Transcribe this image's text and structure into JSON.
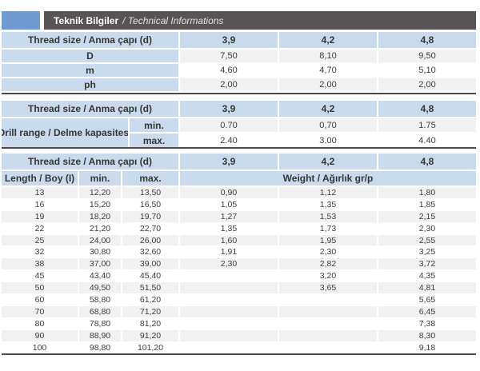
{
  "header": {
    "title_tr": "Teknik Bilgiler",
    "title_en": "/ Technical Informations"
  },
  "colors": {
    "accent_blue": "#6f9bd1",
    "bar_gray": "#585456",
    "header_blue": "#c8daec",
    "row_stripe_gray": "#f1f1f1",
    "border_dark": "#4a4a4a"
  },
  "table1": {
    "header": [
      "Thread size / Anma çapı (d)",
      "3,9",
      "4,2",
      "4,8"
    ],
    "rows": [
      [
        "D",
        "7,50",
        "8,10",
        "9,50"
      ],
      [
        "m",
        "4,60",
        "4,70",
        "5,10"
      ],
      [
        "ph",
        "2,00",
        "2,00",
        "2,00"
      ]
    ]
  },
  "table2": {
    "header": [
      "Thread size / Anma çapı (d)",
      "3,9",
      "4,2",
      "4,8"
    ],
    "row_label": "Drill range / Delme kapasitesi",
    "rows": [
      [
        "min.",
        "0.70",
        "0,70",
        "1.75"
      ],
      [
        "max.",
        "2.40",
        "3.00",
        "4.40"
      ]
    ]
  },
  "table3": {
    "header": [
      "Thread size / Anma çapı (d)",
      "3,9",
      "4,2",
      "4,8"
    ],
    "subheader": [
      "Length / Boy (I)",
      "min.",
      "max.",
      "Weight / Ağırlık gr/p"
    ],
    "rows": [
      [
        "13",
        "12,20",
        "13,50",
        "0,90",
        "1,12",
        "1,80"
      ],
      [
        "16",
        "15,20",
        "16,50",
        "1,05",
        "1,35",
        "1,85"
      ],
      [
        "19",
        "18,20",
        "19,70",
        "1,27",
        "1,53",
        "2,15"
      ],
      [
        "22",
        "21,20",
        "22,70",
        "1,35",
        "1,73",
        "2,30"
      ],
      [
        "25",
        "24,00",
        "26,00",
        "1,60",
        "1,95",
        "2,55"
      ],
      [
        "32",
        "30,80",
        "32,60",
        "1,91",
        "2,30",
        "3,25"
      ],
      [
        "38",
        "37,00",
        "39,00",
        "2,30",
        "2,82",
        "3,72"
      ],
      [
        "45",
        "43,40",
        "45,40",
        "",
        "3,20",
        "4,35"
      ],
      [
        "50",
        "49,50",
        "51,50",
        "",
        "3,65",
        "4,81"
      ],
      [
        "60",
        "58,80",
        "61,20",
        "",
        "",
        "5,65"
      ],
      [
        "70",
        "68,80",
        "71,20",
        "",
        "",
        "6,45"
      ],
      [
        "80",
        "78,80",
        "81,20",
        "",
        "",
        "7,38"
      ],
      [
        "90",
        "88,90",
        "91,20",
        "",
        "",
        "8,30"
      ],
      [
        "100",
        "98,80",
        "101,20",
        "",
        "",
        "9,18"
      ]
    ]
  }
}
